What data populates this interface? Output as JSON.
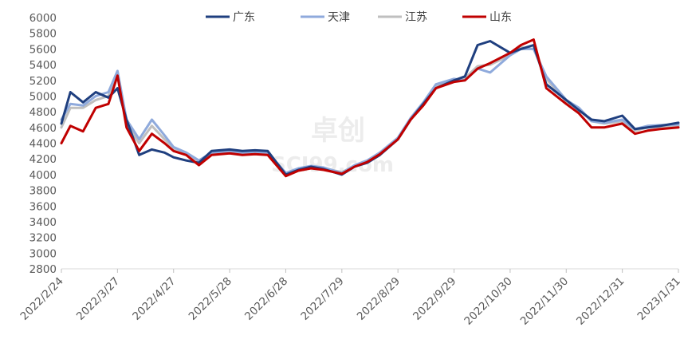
{
  "chart_data": {
    "type": "line",
    "x": [
      "2022/2/24",
      "2022/3/1",
      "2022/3/8",
      "2022/3/15",
      "2022/3/22",
      "2022/3/27",
      "2022/4/1",
      "2022/4/8",
      "2022/4/15",
      "2022/4/22",
      "2022/4/27",
      "2022/5/4",
      "2022/5/11",
      "2022/5/18",
      "2022/5/28",
      "2022/6/4",
      "2022/6/11",
      "2022/6/18",
      "2022/6/28",
      "2022/7/5",
      "2022/7/12",
      "2022/7/19",
      "2022/7/29",
      "2022/8/5",
      "2022/8/12",
      "2022/8/19",
      "2022/8/29",
      "2022/9/5",
      "2022/9/12",
      "2022/9/19",
      "2022/9/29",
      "2022/10/5",
      "2022/10/12",
      "2022/10/19",
      "2022/10/30",
      "2022/11/5",
      "2022/11/12",
      "2022/11/19",
      "2022/11/30",
      "2022/12/7",
      "2022/12/14",
      "2022/12/21",
      "2022/12/31",
      "2023/1/7",
      "2023/1/14",
      "2023/1/21",
      "2023/1/31"
    ],
    "x_tick_labels": [
      "2022/2/24",
      "2022/3/27",
      "2022/4/27",
      "2022/5/28",
      "2022/6/28",
      "2022/7/29",
      "2022/8/29",
      "2022/9/29",
      "2022/10/30",
      "2022/11/30",
      "2022/12/31",
      "2023/1/31"
    ],
    "y_ticks": [
      2800,
      3000,
      3200,
      3400,
      3600,
      3800,
      4000,
      4200,
      4400,
      4600,
      4800,
      5000,
      5200,
      5400,
      5600,
      5800,
      6000
    ],
    "ylim": [
      2800,
      6000
    ],
    "legend_position": "top-center",
    "grid": false,
    "series": [
      {
        "name": "广东",
        "color": "#1f3f7f",
        "values": [
          4650,
          5050,
          4920,
          5050,
          4980,
          5100,
          4700,
          4250,
          4320,
          4280,
          4220,
          4180,
          4150,
          4300,
          4320,
          4300,
          4310,
          4300,
          4000,
          4060,
          4100,
          4070,
          4000,
          4100,
          4150,
          4250,
          4450,
          4700,
          4900,
          5100,
          5200,
          5250,
          5650,
          5700,
          5550,
          5600,
          5650,
          5150,
          4950,
          4820,
          4700,
          4680,
          4750,
          4580,
          4600,
          4620,
          4660
        ]
      },
      {
        "name": "天津",
        "color": "#8faadc",
        "values": [
          4700,
          4900,
          4880,
          5000,
          5050,
          5320,
          4700,
          4450,
          4700,
          4500,
          4350,
          4280,
          4180,
          4280,
          4300,
          4280,
          4290,
          4280,
          4020,
          4080,
          4110,
          4090,
          4020,
          4120,
          4180,
          4280,
          4470,
          4720,
          4920,
          5150,
          5220,
          5200,
          5350,
          5300,
          5520,
          5600,
          5600,
          5250,
          4950,
          4850,
          4680,
          4660,
          4700,
          4580,
          4620,
          4630,
          4640
        ]
      },
      {
        "name": "江苏",
        "color": "#bfbfbf",
        "values": [
          4600,
          4850,
          4850,
          4950,
          5000,
          5300,
          4650,
          4400,
          4620,
          4450,
          4330,
          4270,
          4170,
          4260,
          4280,
          4270,
          4280,
          4270,
          4010,
          4070,
          4100,
          4080,
          4030,
          4110,
          4170,
          4270,
          4460,
          4710,
          4900,
          5130,
          5200,
          5230,
          5380,
          5400,
          5520,
          5620,
          5600,
          5220,
          4930,
          4830,
          4680,
          4650,
          4680,
          4560,
          4600,
          4610,
          4620
        ]
      },
      {
        "name": "山东",
        "color": "#c00000",
        "values": [
          4400,
          4620,
          4550,
          4850,
          4900,
          5260,
          4600,
          4300,
          4520,
          4400,
          4300,
          4250,
          4120,
          4250,
          4270,
          4250,
          4260,
          4250,
          3980,
          4050,
          4080,
          4060,
          4010,
          4100,
          4160,
          4260,
          4450,
          4700,
          4880,
          5100,
          5180,
          5200,
          5350,
          5420,
          5550,
          5650,
          5720,
          5100,
          4900,
          4780,
          4600,
          4600,
          4650,
          4520,
          4560,
          4580,
          4600
        ]
      }
    ]
  },
  "watermark": {
    "line1": "卓创",
    "line2": "SCI99.com"
  }
}
